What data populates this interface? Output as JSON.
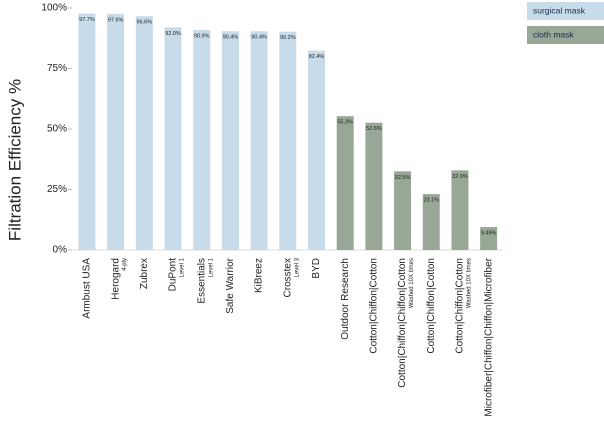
{
  "chart_data": {
    "type": "bar",
    "y_label": "Filtration Efficiency %",
    "categories": [
      "Armbust USA",
      "Herogard",
      "Zubrex",
      "DuPont",
      "Essentials",
      "Safe Warrior",
      "KiBreez",
      "Crosstex",
      "BYD",
      "Outdoor Research",
      "Cotton|Chiffon|Cotton",
      "Cotton|Chiffon|Chiffon|Cotton",
      "Cotton|Chiffon|Cotton",
      "Cotton|Chiffon|Cotton",
      "Microfiber|Chiffon|Chiffon|Microfiber"
    ],
    "sublabels": [
      null,
      "4-ply",
      null,
      "Level 1",
      "Level 1",
      null,
      null,
      "Level 3",
      null,
      null,
      null,
      "Washed 10X times",
      null,
      "Washed 10X times",
      null
    ],
    "series": [
      {
        "name": "surgical mask",
        "color": "#c7dbea",
        "values": [
          97.7,
          97.6,
          96.6,
          92.0,
          90.9,
          90.4,
          90.4,
          90.2,
          82.4,
          null,
          null,
          null,
          null,
          null,
          null
        ],
        "value_labels": [
          "97.7%",
          "97.6%",
          "96.6%",
          "92.0%",
          "90.9%",
          "90.4%",
          "90.4%",
          "90.2%",
          "82.4%",
          null,
          null,
          null,
          null,
          null,
          null
        ]
      },
      {
        "name": "cloth mask",
        "color": "#98a796",
        "values": [
          null,
          null,
          null,
          null,
          null,
          null,
          null,
          null,
          null,
          55.3,
          52.6,
          32.5,
          23.1,
          32.9,
          9.49
        ],
        "value_labels": [
          null,
          null,
          null,
          null,
          null,
          null,
          null,
          null,
          null,
          "55.3%",
          "52.6%",
          "32.5%",
          "23.1%",
          "32.9%",
          "9.49%"
        ]
      }
    ],
    "ylim": [
      0,
      100
    ],
    "yticks": [
      {
        "value": 0,
        "label": "0%"
      },
      {
        "value": 25,
        "label": "25%"
      },
      {
        "value": 50,
        "label": "50%"
      },
      {
        "value": 75,
        "label": "75%"
      },
      {
        "value": 100,
        "label": "100%"
      }
    ]
  }
}
